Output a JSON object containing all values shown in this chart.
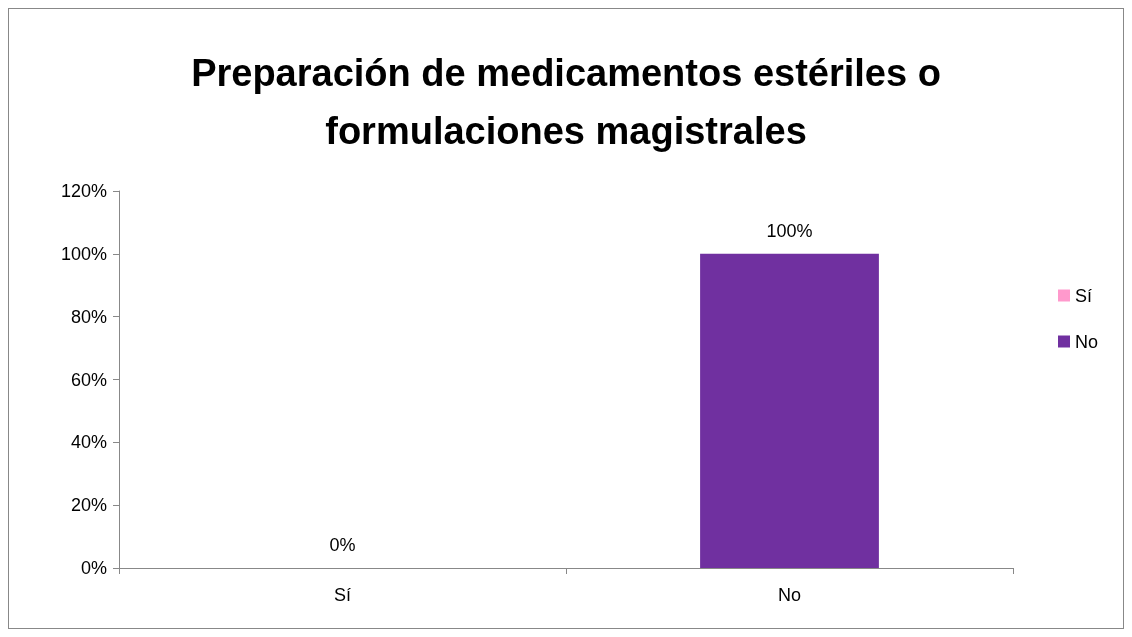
{
  "chart_data": {
    "type": "bar",
    "title": "Preparación de medicamentos estériles o\nformulaciones magistrales",
    "categories": [
      "Sí",
      "No"
    ],
    "stacked": true,
    "series": [
      {
        "name": "Sí",
        "color": "#ff99cc",
        "values": [
          0,
          null
        ],
        "value_labels": [
          "0%",
          null
        ]
      },
      {
        "name": "No",
        "color": "#7030a0",
        "values": [
          null,
          100
        ],
        "value_labels": [
          null,
          "100%"
        ]
      }
    ],
    "ylim": [
      0,
      120
    ],
    "yticks": [
      {
        "value": 0,
        "label": "0%"
      },
      {
        "value": 20,
        "label": "20%"
      },
      {
        "value": 40,
        "label": "40%"
      },
      {
        "value": 60,
        "label": "60%"
      },
      {
        "value": 80,
        "label": "80%"
      },
      {
        "value": 100,
        "label": "100%"
      },
      {
        "value": 120,
        "label": "120%"
      }
    ],
    "grid": false,
    "legend": "right"
  }
}
